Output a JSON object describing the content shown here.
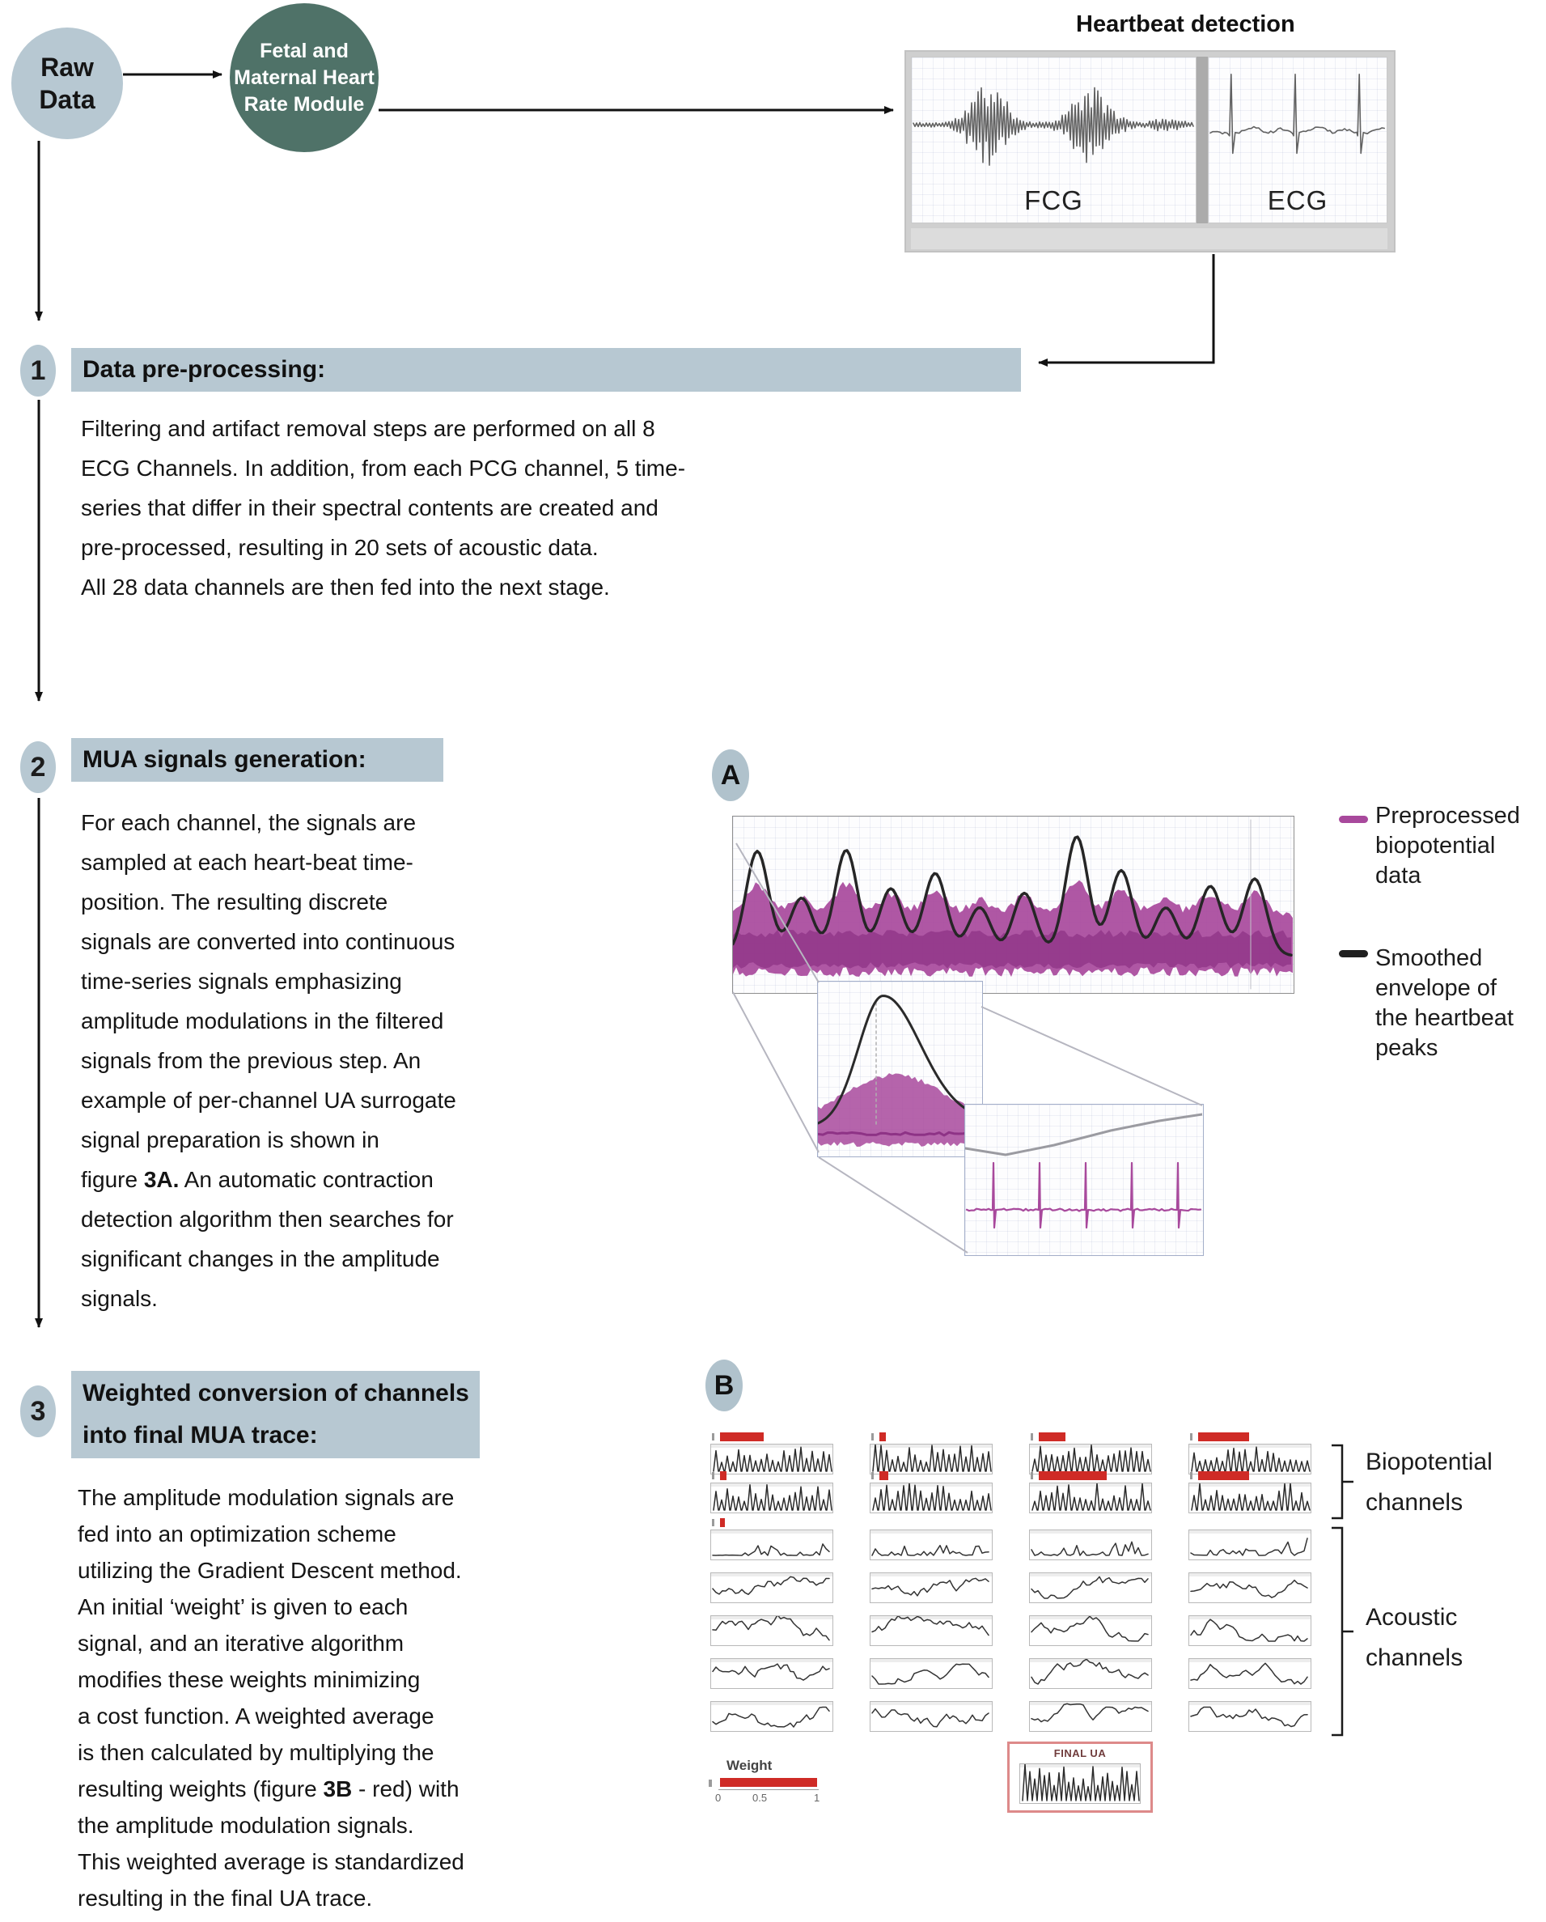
{
  "colors": {
    "accent_gray_blue": "#b7c8d2",
    "module_green": "#4f7268",
    "signal_purple": "#a8499c",
    "signal_purple_dark": "#8e3386",
    "weight_red": "#cf2b26",
    "final_box_red": "#dd8a8a"
  },
  "flow": {
    "raw_data_lines": [
      "Raw",
      "Data"
    ],
    "module_lines": [
      "Fetal and",
      "Maternal Heart",
      "Rate Module"
    ],
    "heartbeat": {
      "title": "Heartbeat detection",
      "fcg_label": "FCG",
      "ecg_label": "ECG"
    }
  },
  "steps": [
    {
      "number": "1",
      "title_lines": [
        "Data pre-processing:"
      ],
      "body_lines": [
        "Filtering and artifact removal steps are performed on all 8",
        "ECG Channels. In addition, from each PCG channel, 5 time-",
        "series that differ in their spectral contents are created and",
        "pre-processed, resulting in 20 sets of acoustic data.",
        "All 28 data channels are then fed into the next stage."
      ]
    },
    {
      "number": "2",
      "title_lines": [
        "MUA signals generation:"
      ],
      "body_lines": [
        "For each channel, the signals are",
        "sampled at each heart-beat time-",
        "position. The resulting discrete",
        "signals are converted into continuous",
        "time-series signals emphasizing",
        "amplitude modulations in the filtered",
        "signals from the previous step. An",
        "example of per-channel UA surrogate",
        "signal preparation is shown in",
        "figure **3A.** An automatic contraction",
        "detection algorithm then searches for",
        "significant changes in the amplitude",
        "signals."
      ]
    },
    {
      "number": "3",
      "title_lines": [
        "Weighted conversion of channels",
        "into final MUA trace:"
      ],
      "body_lines": [
        "The amplitude modulation signals are",
        "fed into an optimization scheme",
        "utilizing the Gradient Descent method.",
        "An initial ‘weight’ is given to each",
        "signal, and an iterative algorithm",
        "modifies these weights minimizing",
        "a cost function. A weighted average",
        "is then calculated by multiplying the",
        "resulting weights (figure **3B** - red) with",
        "the amplitude modulation signals.",
        "This weighted average is standardized",
        "resulting in the final UA trace."
      ]
    }
  ],
  "figure_a": {
    "label": "A",
    "legend": [
      {
        "swatch_color": "#a8499c",
        "lines": [
          "Preprocessed",
          "biopotential",
          "data"
        ]
      },
      {
        "swatch_color": "#1f1f1f",
        "lines": [
          "Smoothed",
          "envelope of",
          "the heartbeat",
          "peaks"
        ]
      }
    ]
  },
  "figure_b": {
    "label": "B",
    "group_labels": [
      {
        "lines": [
          "Biopotential",
          "channels"
        ]
      },
      {
        "lines": [
          "Acoustic",
          "channels"
        ]
      }
    ],
    "weight_legend": {
      "title": "Weight",
      "ticks": [
        "0",
        "0.5",
        "1"
      ]
    },
    "final_label": "FINAL UA",
    "weights_rows": [
      [
        0.36,
        0.05,
        0.22,
        0.42
      ],
      [
        0.05,
        0.07,
        0.56,
        0.42
      ],
      [
        0.04,
        0,
        0,
        0
      ],
      [
        0,
        0,
        0,
        0
      ],
      [
        0,
        0,
        0,
        0
      ],
      [
        0,
        0,
        0,
        0
      ],
      [
        0,
        0,
        0,
        0
      ]
    ]
  }
}
